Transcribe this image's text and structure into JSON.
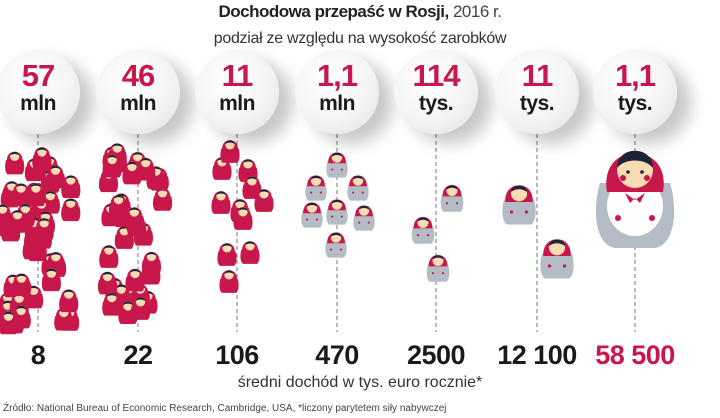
{
  "title_bold": "Dochodowa przepaść w Rosji,",
  "title_year": "2016 r.",
  "subtitle": "podział ze względu na wysokość zarobków",
  "chart_data": {
    "type": "pictogram",
    "groups": [
      {
        "population_value": "57",
        "population_unit": "mln",
        "income": "8",
        "highlight": false
      },
      {
        "population_value": "46",
        "population_unit": "mln",
        "income": "22",
        "highlight": false
      },
      {
        "population_value": "11",
        "population_unit": "mln",
        "income": "106",
        "highlight": false
      },
      {
        "population_value": "1,1",
        "population_unit": "mln",
        "income": "470",
        "highlight": false
      },
      {
        "population_value": "114",
        "population_unit": "tys.",
        "income": "2500",
        "highlight": false
      },
      {
        "population_value": "11",
        "population_unit": "tys.",
        "income": "12 100",
        "highlight": false
      },
      {
        "population_value": "1,1",
        "population_unit": "tys.",
        "income": "58 500",
        "highlight": true
      }
    ],
    "xlabel": "średni dochód w tys. euro rocznie*"
  },
  "source": "Źródło: National Bureau of Economic Research, Cambridge, USA, *liczony parytetem siły nabywczej",
  "colors": {
    "accent": "#c8174a",
    "doll_body_gray": "#b4bcc5",
    "face": "#f7dcb4",
    "hair": "#1e2338"
  }
}
